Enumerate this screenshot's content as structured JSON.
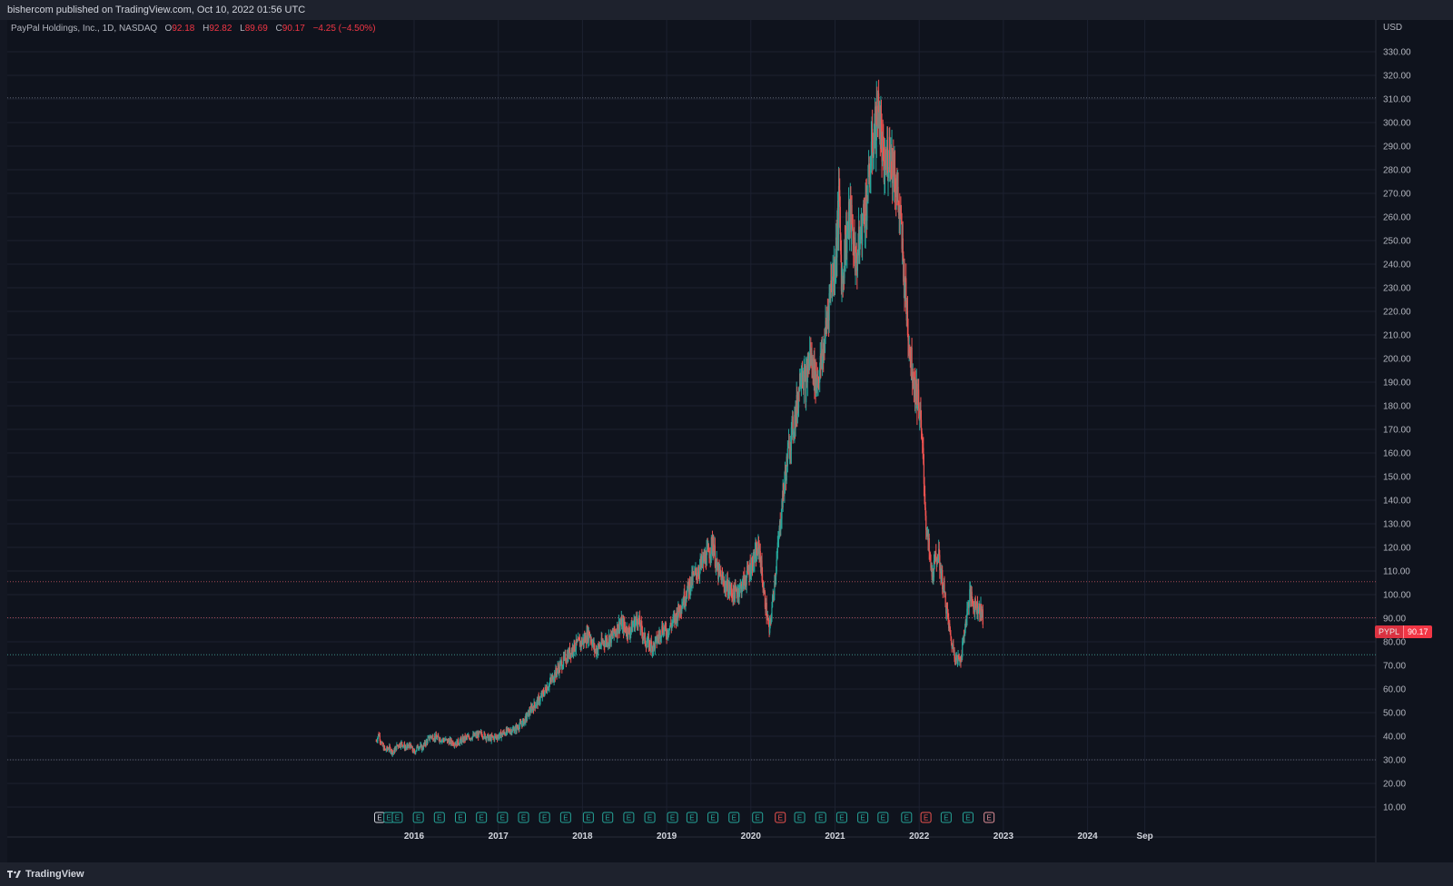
{
  "header": {
    "published_text": "bishercom published on TradingView.com, Oct 10, 2022 01:56 UTC"
  },
  "legend": {
    "symbol_desc": "PayPal Holdings, Inc., 1D, NASDAQ",
    "open_label": "O",
    "open": "92.18",
    "high_label": "H",
    "high": "92.82",
    "low_label": "L",
    "low": "89.69",
    "close_label": "C",
    "close": "90.17",
    "change": "−4.25 (−4.50%)"
  },
  "price_tag": {
    "symbol": "PYPL",
    "value": "90.17"
  },
  "footer": {
    "brand": "TradingView"
  },
  "colors": {
    "up": "#26a69a",
    "down": "#ef5350",
    "grid": "#1c2130",
    "hline": "#5d6270",
    "earnings": "#26a69a",
    "earnings_miss": "#ef5350"
  },
  "chart_data": {
    "type": "candlestick",
    "currency": "USD",
    "y_ticks": [
      10,
      20,
      30,
      40,
      50,
      60,
      70,
      80,
      90,
      100,
      110,
      120,
      130,
      140,
      150,
      160,
      170,
      180,
      190,
      200,
      210,
      220,
      230,
      240,
      250,
      260,
      270,
      280,
      290,
      300,
      310,
      320,
      330
    ],
    "y_tick_labels": [
      "10.00",
      "20.00",
      "30.00",
      "40.00",
      "50.00",
      "60.00",
      "70.00",
      "80.00",
      "90.00",
      "100.00",
      "110.00",
      "120.00",
      "130.00",
      "140.00",
      "150.00",
      "160.00",
      "170.00",
      "180.00",
      "190.00",
      "200.00",
      "210.00",
      "220.00",
      "230.00",
      "240.00",
      "250.00",
      "260.00",
      "270.00",
      "280.00",
      "290.00",
      "300.00",
      "310.00",
      "320.00",
      "330.00"
    ],
    "x_tick_labels": [
      {
        "label": "2016",
        "t": 2016.0
      },
      {
        "label": "2017",
        "t": 2017.0
      },
      {
        "label": "2018",
        "t": 2018.0
      },
      {
        "label": "2019",
        "t": 2019.0
      },
      {
        "label": "2020",
        "t": 2020.0
      },
      {
        "label": "2021",
        "t": 2021.0
      },
      {
        "label": "2022",
        "t": 2022.0
      },
      {
        "label": "2023",
        "t": 2023.0
      },
      {
        "label": "2024",
        "t": 2024.0
      },
      {
        "label": "Sep",
        "t": 2024.68
      }
    ],
    "horizontal_lines": [
      {
        "price": 310.5,
        "color": "#5d6270"
      },
      {
        "price": 105.5,
        "color": "#a44a55"
      },
      {
        "price": 90.17,
        "color": "#a44a55"
      },
      {
        "price": 74.5,
        "color": "#3b8f89"
      },
      {
        "price": 30,
        "color": "#5d6270"
      }
    ],
    "price_path": [
      [
        2015.55,
        38
      ],
      [
        2015.58,
        41
      ],
      [
        2015.62,
        36
      ],
      [
        2015.66,
        34
      ],
      [
        2015.7,
        35
      ],
      [
        2015.75,
        33
      ],
      [
        2015.8,
        36
      ],
      [
        2015.85,
        37
      ],
      [
        2015.9,
        35
      ],
      [
        2015.95,
        36
      ],
      [
        2016.0,
        33
      ],
      [
        2016.05,
        36
      ],
      [
        2016.1,
        35
      ],
      [
        2016.15,
        38
      ],
      [
        2016.2,
        40
      ],
      [
        2016.3,
        39
      ],
      [
        2016.4,
        38
      ],
      [
        2016.5,
        37
      ],
      [
        2016.6,
        39
      ],
      [
        2016.7,
        40
      ],
      [
        2016.8,
        41
      ],
      [
        2016.9,
        39
      ],
      [
        2017.0,
        40
      ],
      [
        2017.1,
        42
      ],
      [
        2017.2,
        43
      ],
      [
        2017.3,
        46
      ],
      [
        2017.4,
        52
      ],
      [
        2017.5,
        56
      ],
      [
        2017.6,
        62
      ],
      [
        2017.7,
        68
      ],
      [
        2017.8,
        73
      ],
      [
        2017.9,
        78
      ],
      [
        2018.0,
        80
      ],
      [
        2018.08,
        84
      ],
      [
        2018.15,
        76
      ],
      [
        2018.25,
        80
      ],
      [
        2018.35,
        82
      ],
      [
        2018.45,
        88
      ],
      [
        2018.55,
        84
      ],
      [
        2018.65,
        90
      ],
      [
        2018.75,
        80
      ],
      [
        2018.85,
        78
      ],
      [
        2018.95,
        86
      ],
      [
        2019.0,
        84
      ],
      [
        2019.1,
        90
      ],
      [
        2019.2,
        98
      ],
      [
        2019.3,
        106
      ],
      [
        2019.4,
        112
      ],
      [
        2019.5,
        118
      ],
      [
        2019.55,
        122
      ],
      [
        2019.6,
        110
      ],
      [
        2019.7,
        104
      ],
      [
        2019.8,
        100
      ],
      [
        2019.9,
        104
      ],
      [
        2020.0,
        112
      ],
      [
        2020.1,
        120
      ],
      [
        2020.15,
        102
      ],
      [
        2020.22,
        84
      ],
      [
        2020.3,
        112
      ],
      [
        2020.38,
        142
      ],
      [
        2020.45,
        162
      ],
      [
        2020.55,
        180
      ],
      [
        2020.6,
        198
      ],
      [
        2020.65,
        188
      ],
      [
        2020.7,
        202
      ],
      [
        2020.78,
        190
      ],
      [
        2020.85,
        200
      ],
      [
        2020.9,
        215
      ],
      [
        2020.95,
        232
      ],
      [
        2021.0,
        240
      ],
      [
        2021.05,
        268
      ],
      [
        2021.08,
        230
      ],
      [
        2021.12,
        248
      ],
      [
        2021.18,
        262
      ],
      [
        2021.25,
        240
      ],
      [
        2021.3,
        252
      ],
      [
        2021.38,
        268
      ],
      [
        2021.45,
        292
      ],
      [
        2021.52,
        306
      ],
      [
        2021.58,
        278
      ],
      [
        2021.65,
        290
      ],
      [
        2021.72,
        276
      ],
      [
        2021.78,
        256
      ],
      [
        2021.85,
        220
      ],
      [
        2021.9,
        200
      ],
      [
        2021.95,
        188
      ],
      [
        2022.0,
        180
      ],
      [
        2022.05,
        155
      ],
      [
        2022.08,
        130
      ],
      [
        2022.15,
        108
      ],
      [
        2022.22,
        118
      ],
      [
        2022.3,
        100
      ],
      [
        2022.38,
        80
      ],
      [
        2022.45,
        72
      ],
      [
        2022.5,
        74
      ],
      [
        2022.55,
        88
      ],
      [
        2022.6,
        100
      ],
      [
        2022.65,
        96
      ],
      [
        2022.72,
        94
      ],
      [
        2022.76,
        90
      ]
    ],
    "earnings_markers": [
      {
        "t": 2015.59,
        "kind": "current"
      },
      {
        "t": 2015.7,
        "kind": "beat"
      },
      {
        "t": 2015.8,
        "kind": "beat"
      },
      {
        "t": 2016.05,
        "kind": "beat"
      },
      {
        "t": 2016.3,
        "kind": "beat"
      },
      {
        "t": 2016.55,
        "kind": "beat"
      },
      {
        "t": 2016.8,
        "kind": "beat"
      },
      {
        "t": 2017.05,
        "kind": "beat"
      },
      {
        "t": 2017.3,
        "kind": "beat"
      },
      {
        "t": 2017.55,
        "kind": "beat"
      },
      {
        "t": 2017.8,
        "kind": "beat"
      },
      {
        "t": 2018.07,
        "kind": "beat"
      },
      {
        "t": 2018.3,
        "kind": "beat"
      },
      {
        "t": 2018.55,
        "kind": "beat"
      },
      {
        "t": 2018.8,
        "kind": "beat"
      },
      {
        "t": 2019.07,
        "kind": "beat"
      },
      {
        "t": 2019.3,
        "kind": "beat"
      },
      {
        "t": 2019.55,
        "kind": "beat"
      },
      {
        "t": 2019.8,
        "kind": "beat"
      },
      {
        "t": 2020.08,
        "kind": "beat"
      },
      {
        "t": 2020.35,
        "kind": "miss"
      },
      {
        "t": 2020.58,
        "kind": "beat"
      },
      {
        "t": 2020.83,
        "kind": "beat"
      },
      {
        "t": 2021.08,
        "kind": "beat"
      },
      {
        "t": 2021.33,
        "kind": "beat"
      },
      {
        "t": 2021.57,
        "kind": "beat"
      },
      {
        "t": 2021.85,
        "kind": "beat"
      },
      {
        "t": 2022.08,
        "kind": "miss"
      },
      {
        "t": 2022.32,
        "kind": "beat"
      },
      {
        "t": 2022.58,
        "kind": "beat"
      },
      {
        "t": 2022.83,
        "kind": "future"
      }
    ]
  }
}
